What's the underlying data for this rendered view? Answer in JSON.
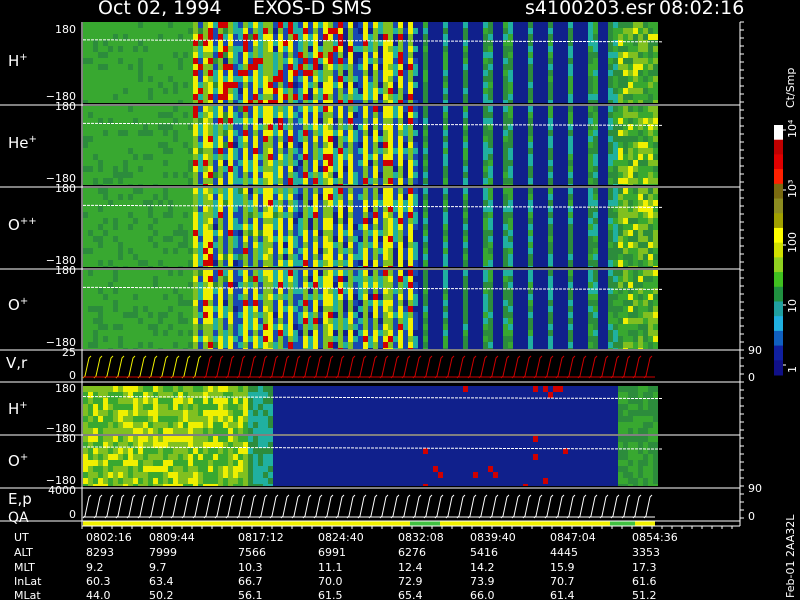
{
  "header": {
    "date": "Oct 02, 1994",
    "instrument": "EXOS-D SMS",
    "file": "s4100203.esr",
    "time": "08:02:16"
  },
  "colorbar": {
    "label": "Ct/Smp",
    "ticks": [
      "10⁴",
      "10³",
      "100",
      "10",
      "1"
    ]
  },
  "panels": [
    {
      "label_main": "H",
      "label_sup": "+",
      "y_top": "180",
      "y_bottom": "−180"
    },
    {
      "label_main": "He",
      "label_sup": "+",
      "y_top": "180",
      "y_bottom": "−180"
    },
    {
      "label_main": "O",
      "label_sup": "++",
      "y_top": "180",
      "y_bottom": "−180"
    },
    {
      "label_main": "O",
      "label_sup": "+",
      "y_top": "180",
      "y_bottom": "−180"
    },
    {
      "label_main": "V,r",
      "label_sup": "",
      "y_top": "25",
      "y_bottom": "0",
      "right_top": "90",
      "right_bottom": "0"
    },
    {
      "label_main": "H",
      "label_sup": "+",
      "y_top": "180",
      "y_bottom": "−180"
    },
    {
      "label_main": "O",
      "label_sup": "+",
      "y_top": "180",
      "y_bottom": "−180"
    },
    {
      "label_main": "E,p",
      "label_sup": "",
      "y_top": "4000",
      "y_bottom": "0",
      "right_top": "90",
      "right_bottom": "0"
    }
  ],
  "qa_label": "QA",
  "side_stamp": "Feb-01 2AA32L",
  "chart_data": {
    "type": "heatmap",
    "title": "Oct 02, 1994   EXOS-D SMS",
    "colorbar_label": "Ct/Smp",
    "colorbar_scale": "log",
    "colorbar_range": [
      1,
      10000
    ],
    "ylim": [
      -180,
      180
    ],
    "table": {
      "row_labels": [
        "UT",
        "ALT",
        "MLT",
        "InLat",
        "MLat"
      ],
      "columns": [
        [
          "0802:16",
          "8293",
          "9.2",
          "60.3",
          "44.0"
        ],
        [
          "0809:44",
          "7999",
          "9.7",
          "63.4",
          "50.2"
        ],
        [
          "0817:12",
          "7566",
          "10.3",
          "66.7",
          "56.1"
        ],
        [
          "0824:40",
          "6991",
          "11.1",
          "70.0",
          "61.5"
        ],
        [
          "0832:08",
          "6276",
          "12.4",
          "72.9",
          "65.4"
        ],
        [
          "0839:40",
          "5416",
          "14.2",
          "73.9",
          "66.0"
        ],
        [
          "0847:04",
          "4445",
          "15.9",
          "70.7",
          "61.4"
        ],
        [
          "0854:36",
          "3353",
          "17.3",
          "61.6",
          "51.2"
        ]
      ]
    },
    "colors": {
      "low": "#10208c",
      "mid": "#20b0a0",
      "green": "#38a830",
      "yellow": "#f0f000",
      "high": "#d00000",
      "axis": "#ffffff"
    }
  }
}
